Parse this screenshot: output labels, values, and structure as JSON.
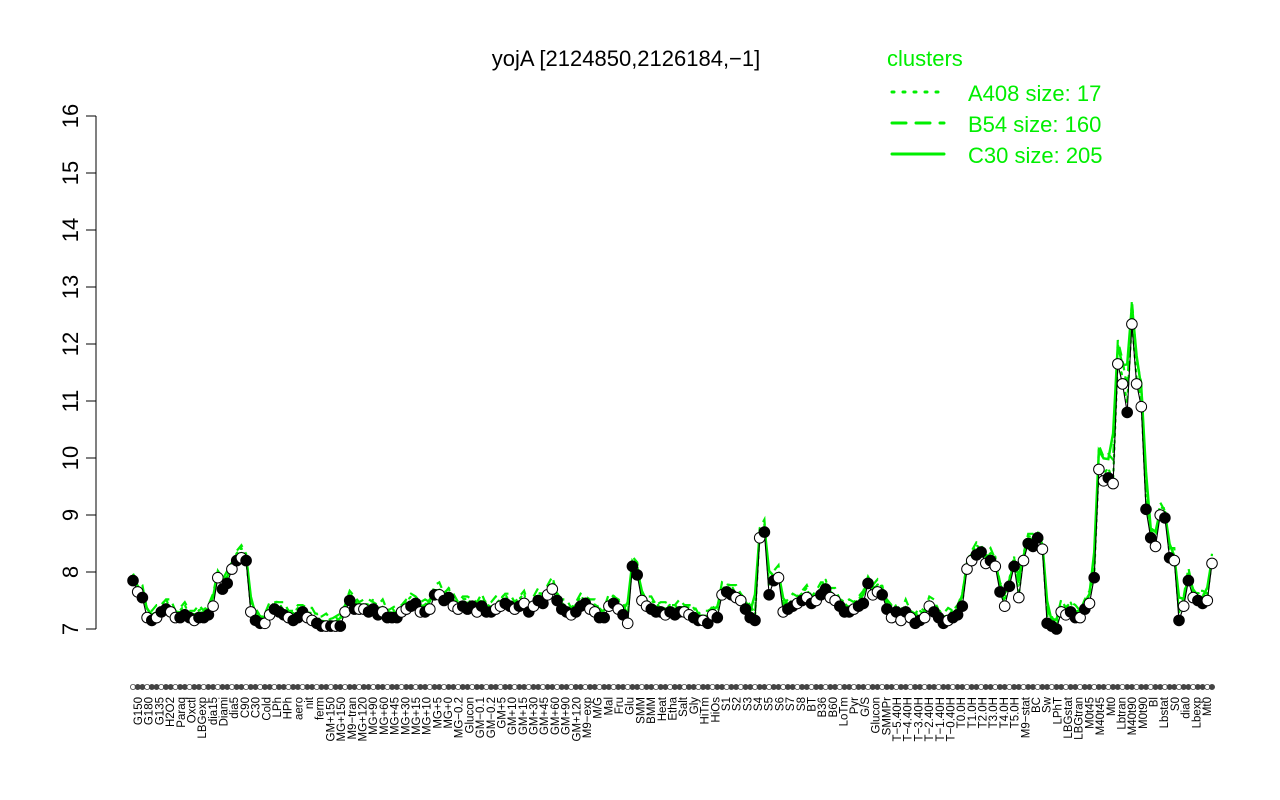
{
  "chart_data": {
    "type": "line",
    "title": "yojA [2124850,2126184,−1]",
    "xlabel": "",
    "ylabel": "",
    "ylim": [
      7,
      16
    ],
    "yticks": [
      "7",
      "8",
      "9",
      "10",
      "11",
      "12",
      "13",
      "14",
      "15",
      "16"
    ],
    "colors": {
      "series": "#00ee00",
      "points": "#000000",
      "axis": "#000000"
    },
    "legend": {
      "title": "clusters",
      "position": "top-right",
      "entries": [
        {
          "label": "A408 size: 17",
          "style": "dotted"
        },
        {
          "label": "B54 size: 160",
          "style": "dashed"
        },
        {
          "label": "C30 size: 205",
          "style": "solid"
        }
      ]
    },
    "xtick_labels": [
      "G150",
      "G180",
      "G135",
      "H2O2",
      "Paraq",
      "Oxctl",
      "LBGexp",
      "dia15",
      "Diami",
      "dia5",
      "C90",
      "C30",
      "Cold",
      "LPh",
      "HPh",
      "aero",
      "nit",
      "ferm",
      "GM+150",
      "MG+150",
      "M9−tran",
      "MG+120",
      "MG+90",
      "MG+60",
      "MG+45",
      "MG+30",
      "MG+15",
      "MG+10",
      "MG+5",
      "MG+0",
      "MG−0.2",
      "Glucon",
      "GM−0.1",
      "GM−0.2",
      "GM+5",
      "GM+10",
      "GM+15",
      "GM+30",
      "GM+45",
      "GM+60",
      "GM+90",
      "GM+120",
      "M9−exp",
      "M/G",
      "Mal",
      "Fru",
      "Glu",
      "SMM",
      "BMM",
      "Heat",
      "Etha",
      "Salt",
      "Gly",
      "HiTm",
      "HiOs",
      "S1",
      "S2",
      "S3",
      "S4",
      "S5",
      "S6",
      "S7",
      "S8",
      "BT",
      "B36",
      "B60",
      "LoTm",
      "Pyr",
      "G/S",
      "Glucon",
      "SMMPr",
      "T−5.40H",
      "T−4.40H",
      "T−3.40H",
      "T−2.40H",
      "T−1.40H",
      "T−0.40H",
      "T0.0H",
      "T1.0H",
      "T2.0H",
      "T3.0H",
      "T4.0H",
      "T5.0H",
      "M9−stat",
      "BC",
      "Sw",
      "LPhT",
      "LBGstat",
      "LBGtran",
      "M0t45",
      "M40t45",
      "Mt0",
      "Lbtran",
      "M40t90",
      "M0t90",
      "Bl",
      "Lbstat",
      "S0",
      "dia0",
      "Lbexp",
      "Mt0"
    ],
    "series": [
      {
        "name": "",
        "values": [
          7.85,
          7.65,
          7.55,
          7.2,
          7.15,
          7.2,
          7.3,
          7.35,
          7.3,
          7.2,
          7.2,
          7.25,
          7.2,
          7.15,
          7.2,
          7.2,
          7.25,
          7.4,
          7.9,
          7.7,
          7.8,
          8.05,
          8.2,
          8.25,
          8.2,
          7.3,
          7.15,
          7.1,
          7.1,
          7.25,
          7.35,
          7.3,
          7.25,
          7.2,
          7.15,
          7.2,
          7.3,
          7.2,
          7.15,
          7.1,
          7.05,
          7.05,
          7.05,
          7.05,
          7.05,
          7.3,
          7.5,
          7.35,
          7.35,
          7.35,
          7.3,
          7.35,
          7.25,
          7.3,
          7.2,
          7.2,
          7.2,
          7.3,
          7.35,
          7.4,
          7.45,
          7.3,
          7.3,
          7.35,
          7.6,
          7.6,
          7.5,
          7.55,
          7.4,
          7.35,
          7.4,
          7.35,
          7.4,
          7.3,
          7.4,
          7.3,
          7.3,
          7.35,
          7.4,
          7.45,
          7.4,
          7.35,
          7.4,
          7.45,
          7.3,
          7.4,
          7.5,
          7.45,
          7.6,
          7.7,
          7.5,
          7.35,
          7.3,
          7.25,
          7.3,
          7.4,
          7.45,
          7.35,
          7.3,
          7.2,
          7.2,
          7.4,
          7.45,
          7.35,
          7.25,
          7.1,
          8.1,
          7.95,
          7.5,
          7.4,
          7.35,
          7.3,
          7.3,
          7.25,
          7.3,
          7.25,
          7.3,
          7.3,
          7.25,
          7.2,
          7.15,
          7.15,
          7.1,
          7.25,
          7.2,
          7.6,
          7.65,
          7.6,
          7.55,
          7.5,
          7.35,
          7.2,
          7.15,
          8.6,
          8.7,
          7.6,
          7.85,
          7.9,
          7.3,
          7.35,
          7.4,
          7.45,
          7.5,
          7.55,
          7.45,
          7.5,
          7.6,
          7.7,
          7.55,
          7.5,
          7.4,
          7.3,
          7.3,
          7.35,
          7.4,
          7.45,
          7.8,
          7.6,
          7.65,
          7.6,
          7.35,
          7.2,
          7.3,
          7.15,
          7.3,
          7.2,
          7.1,
          7.15,
          7.2,
          7.4,
          7.3,
          7.2,
          7.1,
          7.15,
          7.2,
          7.25,
          7.4,
          8.05,
          8.2,
          8.3,
          8.35,
          8.15,
          8.2,
          8.1,
          7.65,
          7.4,
          7.75,
          8.1,
          7.55,
          8.2,
          8.5,
          8.45,
          8.6,
          8.4,
          7.1,
          7.05,
          7.0,
          7.3,
          7.25,
          7.3,
          7.2,
          7.2,
          7.35,
          7.45,
          7.9,
          9.8,
          9.6,
          9.65,
          9.55,
          11.65,
          11.3,
          10.8,
          12.35,
          11.3,
          10.9,
          9.1,
          8.6,
          8.45,
          9.0,
          8.95,
          8.25,
          8.2,
          7.15,
          7.4,
          7.85,
          7.55,
          7.5,
          7.45,
          7.5,
          8.15
        ]
      }
    ]
  }
}
